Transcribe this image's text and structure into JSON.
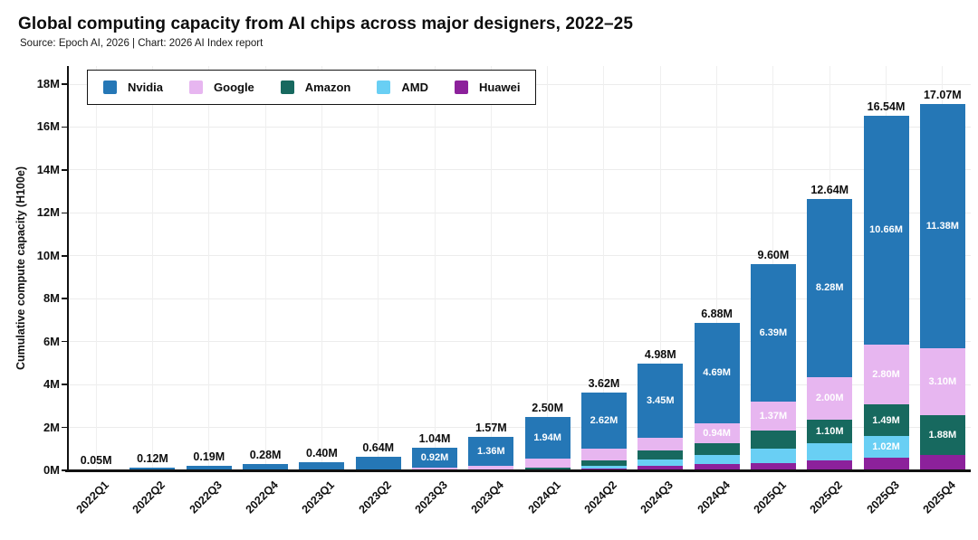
{
  "title": "Global computing capacity from AI chips across major designers, 2022–25",
  "subtitle": "Source: Epoch AI, 2026 | Chart: 2026 AI Index report",
  "colors": {
    "nvidia": "#2577b6",
    "google": "#e7b6f0",
    "amazon": "#17695f",
    "amd": "#69cff4",
    "huawei": "#8c219b",
    "axis": "#111111",
    "gridline": "#ececec",
    "total_label": "#0d0d0d",
    "segment_label": "#ffffff",
    "background": "#ffffff"
  },
  "legend": {
    "items": [
      {
        "name": "Nvidia",
        "color": "#2577b6"
      },
      {
        "name": "Google",
        "color": "#e7b6f0"
      },
      {
        "name": "Amazon",
        "color": "#17695f"
      },
      {
        "name": "AMD",
        "color": "#69cff4"
      },
      {
        "name": "Huawei",
        "color": "#8c219b"
      }
    ]
  },
  "chart_data": {
    "type": "bar",
    "stacked": true,
    "stack_order": "first series renders on top of each bar",
    "title": "Global computing capacity from AI chips across major designers, 2022–25",
    "ylabel": "Cumulative compute capacity (H100e)",
    "xlabel": "",
    "ylim_millions": [
      0,
      18
    ],
    "y_ticks": [
      "0M",
      "2M",
      "4M",
      "6M",
      "8M",
      "10M",
      "12M",
      "14M",
      "16M",
      "18M"
    ],
    "grid": "both, light gray",
    "legend_position": "top-left inside plot, boxed",
    "categories": [
      "2022Q1",
      "2022Q2",
      "2022Q3",
      "2022Q4",
      "2023Q1",
      "2023Q2",
      "2023Q3",
      "2023Q4",
      "2024Q1",
      "2024Q2",
      "2024Q3",
      "2024Q4",
      "2025Q1",
      "2025Q2",
      "2025Q3",
      "2025Q4"
    ],
    "series": [
      {
        "name": "Nvidia",
        "color": "#2577b6",
        "values_millions": [
          0.05,
          0.11,
          0.18,
          0.26,
          0.37,
          0.59,
          0.92,
          1.36,
          1.94,
          2.62,
          3.45,
          4.69,
          6.39,
          8.28,
          10.66,
          11.38
        ],
        "labels": [
          null,
          null,
          null,
          null,
          null,
          null,
          "0.92M",
          "1.36M",
          "1.94M",
          "2.62M",
          "3.45M",
          "4.69M",
          "6.39M",
          "8.28M",
          "10.66M",
          "11.38M"
        ]
      },
      {
        "name": "Google",
        "color": "#e7b6f0",
        "values_millions": [
          0.0,
          0.01,
          0.01,
          0.02,
          0.03,
          0.04,
          0.09,
          0.15,
          0.42,
          0.55,
          0.6,
          0.94,
          1.37,
          2.0,
          2.8,
          3.1
        ],
        "labels": [
          null,
          null,
          null,
          null,
          null,
          null,
          null,
          null,
          null,
          null,
          null,
          "0.94M",
          "1.37M",
          "2.00M",
          "2.80M",
          "3.10M"
        ]
      },
      {
        "name": "Amazon",
        "color": "#17695f",
        "values_millions": [
          0.0,
          0.0,
          0.0,
          0.0,
          0.0,
          0.01,
          0.02,
          0.04,
          0.1,
          0.25,
          0.42,
          0.55,
          0.82,
          1.1,
          1.49,
          1.88
        ],
        "labels": [
          null,
          null,
          null,
          null,
          null,
          null,
          null,
          null,
          null,
          null,
          null,
          null,
          null,
          "1.10M",
          "1.49M",
          "1.88M"
        ]
      },
      {
        "name": "AMD",
        "color": "#69cff4",
        "values_millions": [
          0.0,
          0.0,
          0.0,
          0.0,
          0.0,
          0.0,
          0.01,
          0.02,
          0.03,
          0.12,
          0.32,
          0.4,
          0.68,
          0.8,
          1.02,
          0.0
        ],
        "labels": [
          null,
          null,
          null,
          null,
          null,
          null,
          null,
          null,
          null,
          null,
          null,
          null,
          null,
          null,
          "1.02M",
          null
        ]
      },
      {
        "name": "Huawei",
        "color": "#8c219b",
        "values_millions": [
          0.0,
          0.0,
          0.0,
          0.0,
          0.0,
          0.0,
          0.0,
          0.0,
          0.01,
          0.08,
          0.19,
          0.3,
          0.34,
          0.46,
          0.57,
          0.71
        ],
        "labels": [
          null,
          null,
          null,
          null,
          null,
          null,
          null,
          null,
          null,
          null,
          null,
          null,
          null,
          null,
          null,
          null
        ]
      }
    ],
    "totals_millions": [
      0.05,
      0.12,
      0.19,
      0.28,
      0.4,
      0.64,
      1.04,
      1.57,
      2.5,
      3.62,
      4.98,
      6.88,
      9.6,
      12.64,
      16.54,
      17.07
    ],
    "total_labels": [
      "0.05M",
      "0.12M",
      "0.19M",
      "0.28M",
      "0.40M",
      "0.64M",
      "1.04M",
      "1.57M",
      "2.50M",
      "3.62M",
      "4.98M",
      "6.88M",
      "9.60M",
      "12.64M",
      "16.54M",
      "17.07M"
    ]
  }
}
